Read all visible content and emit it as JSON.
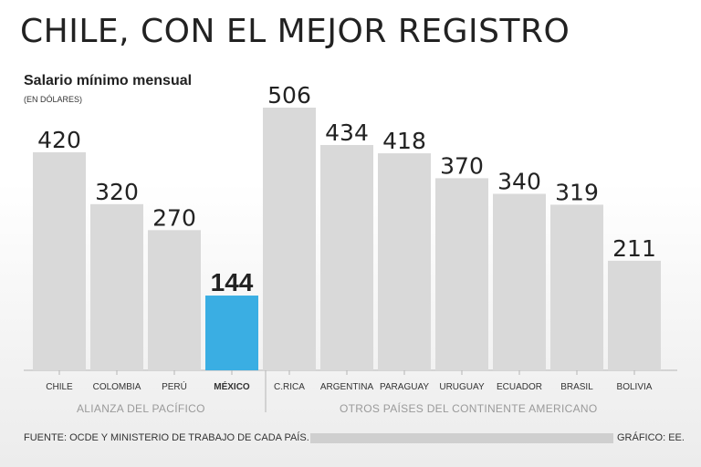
{
  "header": {
    "title": "CHILE, CON EL MEJOR REGISTRO",
    "subtitle": "Salario mínimo mensual",
    "unit": "(EN DÓLARES)"
  },
  "groups": {
    "left": "ALIANZA DEL PACÍFICO",
    "right": "OTROS PAÍSES DEL CONTINENTE AMERICANO"
  },
  "footer": {
    "source": "FUENTE: OCDE Y MINISTERIO DE TRABAJO DE CADA PAÍS.",
    "credit": "GRÁFICO: EE."
  },
  "colors": {
    "bar": "#d9d9d9",
    "highlight": "#3aaee3",
    "axis": "#b5b5b5"
  },
  "chart_data": {
    "type": "bar",
    "title": "CHILE, CON EL MEJOR REGISTRO",
    "ylabel": "Salario mínimo mensual (EN DÓLARES)",
    "xlabel": "",
    "ylim": [
      0,
      506
    ],
    "categories": [
      "CHILE",
      "COLOMBIA",
      "PERÚ",
      "MÉXICO",
      "C.RICA",
      "ARGENTINA",
      "PARAGUAY",
      "URUGUAY",
      "ECUADOR",
      "BRASIL",
      "BOLIVIA"
    ],
    "values": [
      420,
      320,
      270,
      144,
      506,
      434,
      418,
      370,
      340,
      319,
      211
    ],
    "highlight": "MÉXICO",
    "groups": [
      {
        "name": "ALIANZA DEL PACÍFICO",
        "categories": [
          "CHILE",
          "COLOMBIA",
          "PERÚ",
          "MÉXICO"
        ]
      },
      {
        "name": "OTROS PAÍSES DEL CONTINENTE AMERICANO",
        "categories": [
          "C.RICA",
          "ARGENTINA",
          "PARAGUAY",
          "URUGUAY",
          "ECUADOR",
          "BRASIL",
          "BOLIVIA"
        ]
      }
    ]
  }
}
